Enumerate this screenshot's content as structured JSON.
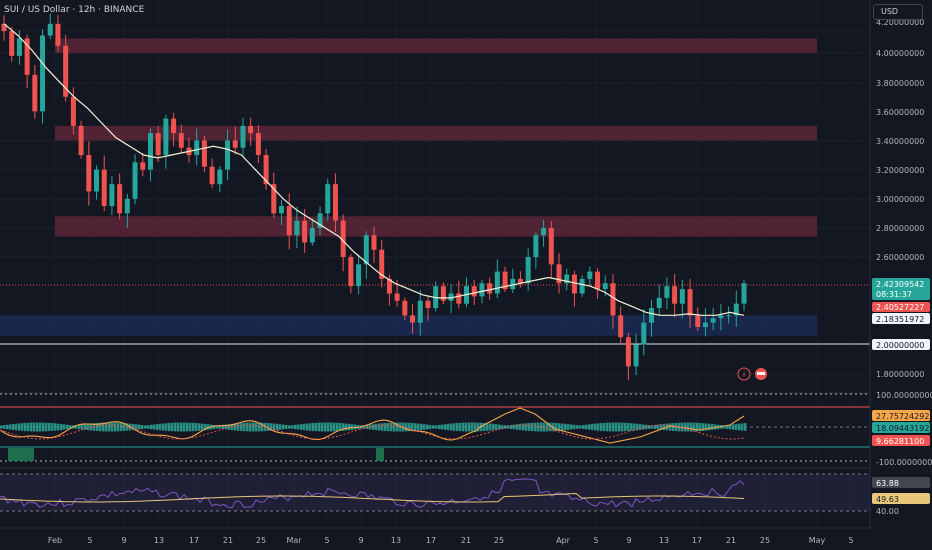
{
  "header": {
    "title": "SUI / US Dollar · 12h · BINANCE",
    "currency_button": "USD"
  },
  "colors": {
    "background": "#131722",
    "up": "#26a69a",
    "down": "#ef5350",
    "ma_line": "#f5f0d5",
    "zone_red": "#5b2437",
    "zone_blue": "#1b2a55",
    "macd_orange": "#f7a64a",
    "rsi_purple": "#7e57c2",
    "rsi_ma": "#e8c77a"
  },
  "icons": [
    "lightning-icon",
    "flag-icon"
  ],
  "price_axis": {
    "ticks": [
      "4.20000000",
      "4.00000000",
      "3.80000000",
      "3.60000000",
      "3.40000000",
      "3.20000000",
      "3.00000000",
      "2.80000000",
      "2.60000000",
      "1.80000000"
    ],
    "labels": [
      {
        "text": "2.42309542",
        "sub": "08:31:37",
        "kind": "last"
      },
      {
        "text": "2.40527227",
        "kind": "red"
      },
      {
        "text": "2.18351972",
        "kind": "white"
      },
      {
        "text": "2.00000000",
        "kind": "white"
      }
    ]
  },
  "indicator1_axis": {
    "ticks": [
      "100.00000000",
      "-100.00000000"
    ],
    "labels": [
      {
        "text": "27.75724292",
        "kind": "orange"
      },
      {
        "text": "18.09443192",
        "kind": "teal"
      },
      {
        "text": "9.66281100",
        "kind": "red"
      }
    ]
  },
  "indicator2_axis": {
    "ticks": [
      "40.00"
    ],
    "labels": [
      {
        "text": "63.88",
        "kind": "gray"
      },
      {
        "text": "49.63",
        "kind": "yellow"
      }
    ]
  },
  "time_axis": [
    "Feb",
    "5",
    "9",
    "13",
    "17",
    "21",
    "25",
    "Mar",
    "5",
    "9",
    "13",
    "17",
    "21",
    "25",
    "Apr",
    "5",
    "9",
    "13",
    "17",
    "21",
    "25",
    "May",
    "5"
  ],
  "chart_data": {
    "type": "candlestick",
    "symbol": "SUI / US Dollar",
    "interval": "12h",
    "exchange": "BINANCE",
    "close_path": [
      4.15,
      3.98,
      4.1,
      3.85,
      3.6,
      4.12,
      4.2,
      4.05,
      3.7,
      3.5,
      3.3,
      3.05,
      3.2,
      2.95,
      3.1,
      2.9,
      3.0,
      3.25,
      3.2,
      3.45,
      3.3,
      3.55,
      3.45,
      3.35,
      3.3,
      3.4,
      3.22,
      3.1,
      3.2,
      3.4,
      3.35,
      3.5,
      3.45,
      3.3,
      3.1,
      2.9,
      2.95,
      2.75,
      2.85,
      2.7,
      2.8,
      2.9,
      3.1,
      2.85,
      2.6,
      2.4,
      2.55,
      2.75,
      2.65,
      2.45,
      2.35,
      2.3,
      2.2,
      2.15,
      2.3,
      2.25,
      2.4,
      2.3,
      2.35,
      2.28,
      2.4,
      2.33,
      2.42,
      2.35,
      2.5,
      2.38,
      2.45,
      2.42,
      2.6,
      2.75,
      2.8,
      2.55,
      2.42,
      2.48,
      2.35,
      2.45,
      2.5,
      2.38,
      2.42,
      2.2,
      2.05,
      1.85,
      2.0,
      2.15,
      2.25,
      2.32,
      2.4,
      2.28,
      2.38,
      2.2,
      2.12,
      2.15,
      2.18,
      2.2,
      2.2,
      2.28,
      2.42
    ],
    "moving_average": [
      4.2,
      4.12,
      4.02,
      3.9,
      3.8,
      3.7,
      3.62,
      3.52,
      3.42,
      3.36,
      3.3,
      3.28,
      3.3,
      3.32,
      3.34,
      3.36,
      3.34,
      3.3,
      3.2,
      3.1,
      3.0,
      2.92,
      2.86,
      2.8,
      2.74,
      2.64,
      2.56,
      2.48,
      2.42,
      2.38,
      2.34,
      2.32,
      2.32,
      2.34,
      2.36,
      2.38,
      2.4,
      2.42,
      2.44,
      2.46,
      2.44,
      2.42,
      2.4,
      2.36,
      2.3,
      2.26,
      2.22,
      2.2,
      2.2,
      2.21,
      2.2,
      2.2,
      2.22,
      2.2
    ],
    "zones": [
      {
        "from": 4.0,
        "to": 4.1,
        "color": "red"
      },
      {
        "from": 3.4,
        "to": 3.5,
        "color": "red"
      },
      {
        "from": 2.74,
        "to": 2.88,
        "color": "red"
      },
      {
        "from": 2.06,
        "to": 2.2,
        "color": "blue"
      }
    ],
    "horizontal_lines": [
      2.0
    ],
    "last_price": 2.42309542,
    "ma_value": 2.18351972
  }
}
